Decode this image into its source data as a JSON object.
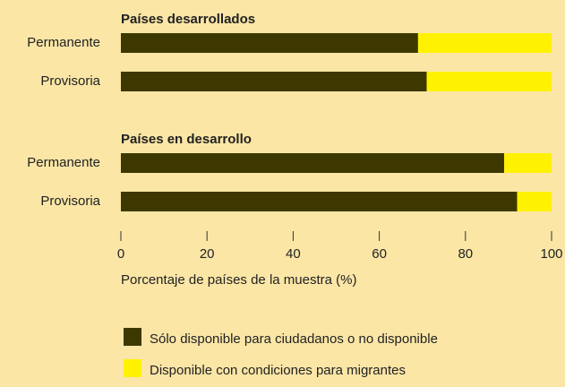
{
  "chart_data": {
    "type": "stacked-barh",
    "series": [
      {
        "name": "Sólo disponible para ciudadanos o no disponible",
        "color": "#3d3800"
      },
      {
        "name": "Disponible con condiciones para migrantes",
        "color": "#fff200"
      }
    ],
    "panels": [
      {
        "title": "Países desarrollados",
        "categories": [
          "Permanente",
          "Provisoria"
        ],
        "values": [
          [
            69,
            31
          ],
          [
            71,
            29
          ]
        ]
      },
      {
        "title": "Países en desarrollo",
        "categories": [
          "Permanente",
          "Provisoria"
        ],
        "values": [
          [
            89,
            11
          ],
          [
            92,
            8
          ]
        ]
      }
    ],
    "xlim": [
      0,
      100
    ],
    "xticks": [
      0,
      20,
      40,
      60,
      80,
      100
    ],
    "xlabel": "Porcentaje de países de la muestra (%)"
  }
}
